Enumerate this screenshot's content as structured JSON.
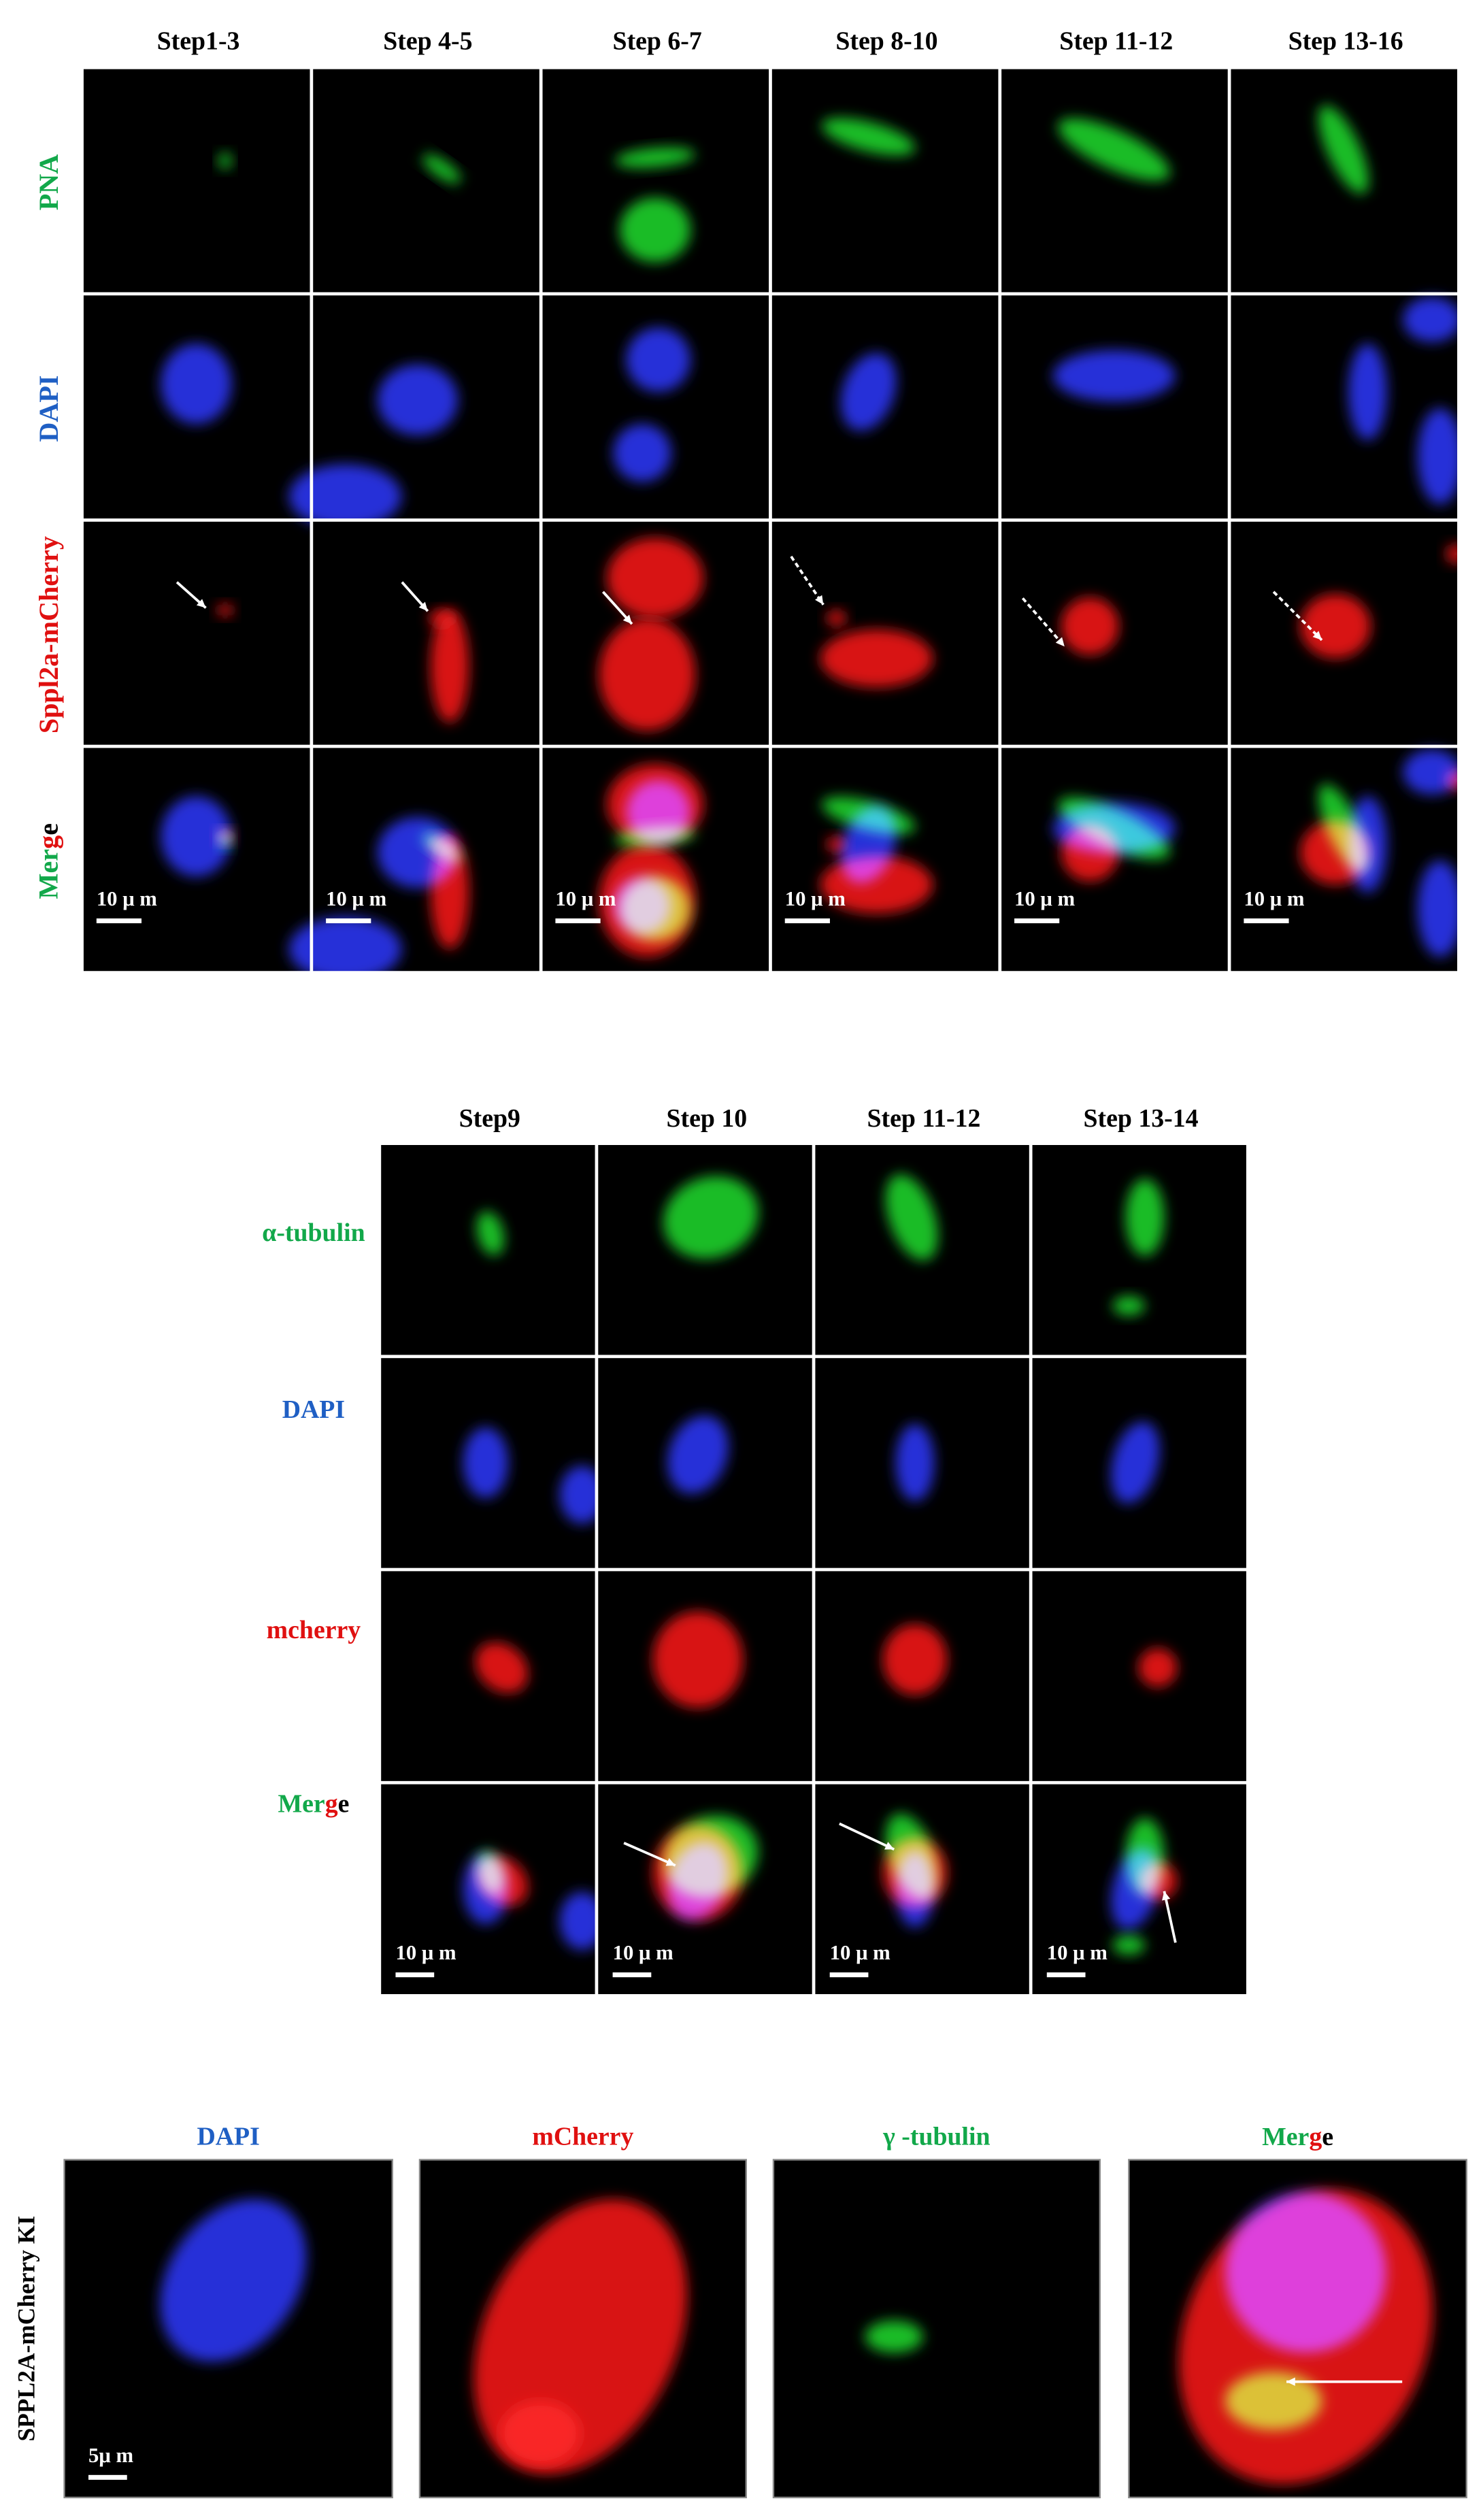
{
  "panel_a": {
    "columns": [
      "Step1-3",
      "Step 4-5",
      "Step 6-7",
      "Step 8-10",
      "Step 11-12",
      "Step 13-16"
    ],
    "rows": [
      "PNA",
      "DAPI",
      "Sppl2a-mCherry",
      "Merge"
    ],
    "scale_labels": [
      "10 μ m",
      "10 μ m",
      "10 μ m",
      "10 μ m",
      "10 μ m",
      "10 μ m"
    ]
  },
  "panel_b": {
    "columns": [
      "Step9",
      "Step 10",
      "Step 11-12",
      "Step 13-14"
    ],
    "rows": [
      "α-tubulin",
      "DAPI",
      "mcherry",
      "Merge"
    ],
    "scale_labels": [
      "10 μ m",
      "10 μ m",
      "10 μ m",
      "10 μ m"
    ]
  },
  "panel_c": {
    "row_label": "SPPL2A-mCherry KI",
    "columns": [
      "DAPI",
      "mCherry",
      "γ -tubulin",
      "Merge"
    ],
    "scale_label": "5μ m"
  }
}
